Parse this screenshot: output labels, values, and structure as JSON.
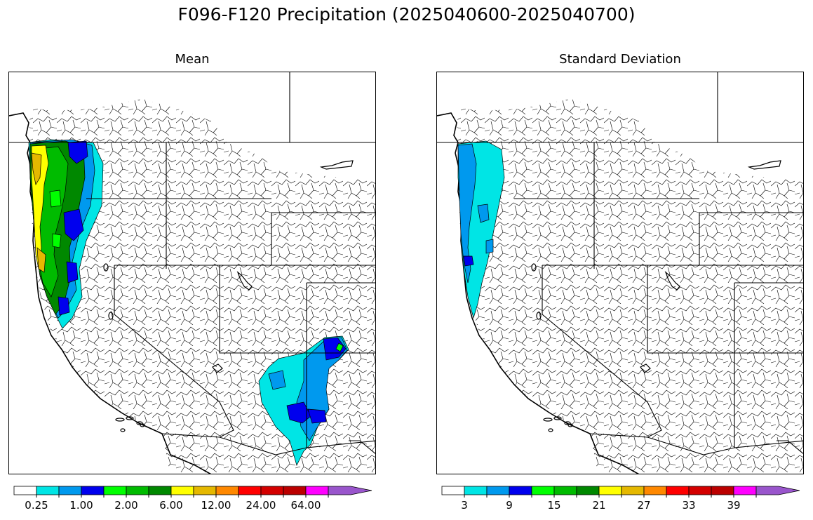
{
  "title": "F096-F120 Precipitation (2025040600-2025040700)",
  "panels": [
    {
      "id": "mean",
      "title": "Mean",
      "colorbar": {
        "colors": [
          "#ffffff",
          "#00e5e5",
          "#0099ee",
          "#0000ee",
          "#00ff00",
          "#00bb00",
          "#008800",
          "#ffff00",
          "#e5b800",
          "#ff8800",
          "#ff0000",
          "#d40000",
          "#bb0000",
          "#ff00ff",
          "#9955cc"
        ],
        "tick_labels": [
          "0.25",
          "1.00",
          "2.00",
          "6.00",
          "12.00",
          "24.00",
          "64.00"
        ],
        "extend": "max"
      }
    },
    {
      "id": "stddev",
      "title": "Standard Deviation",
      "colorbar": {
        "colors": [
          "#ffffff",
          "#00e5e5",
          "#0099ee",
          "#0000ee",
          "#00ff00",
          "#00bb00",
          "#008800",
          "#ffff00",
          "#e5b800",
          "#ff8800",
          "#ff0000",
          "#d40000",
          "#bb0000",
          "#ff00ff",
          "#9955cc"
        ],
        "tick_labels": [
          "3",
          "9",
          "15",
          "21",
          "27",
          "33",
          "39"
        ],
        "extend": "max"
      }
    }
  ]
}
